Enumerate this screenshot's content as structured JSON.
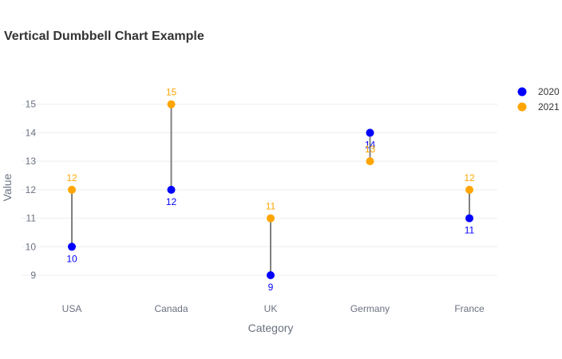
{
  "chart_data": {
    "type": "scatter",
    "title": "Vertical Dumbbell Chart Example",
    "xlabel": "Category",
    "ylabel": "Value",
    "categories": [
      "USA",
      "Canada",
      "UK",
      "Germany",
      "France"
    ],
    "ylim": [
      8.3,
      16
    ],
    "yticks": [
      9,
      10,
      11,
      12,
      13,
      14,
      15
    ],
    "grid": true,
    "legend_position": "top-right",
    "connector_color": "#808080",
    "series": [
      {
        "name": "2020",
        "color": "#0000ff",
        "values": [
          10,
          12,
          9,
          14,
          11
        ],
        "label_position": "below"
      },
      {
        "name": "2021",
        "color": "#ffa500",
        "values": [
          12,
          15,
          11,
          13,
          12
        ],
        "label_position": "above"
      }
    ]
  }
}
